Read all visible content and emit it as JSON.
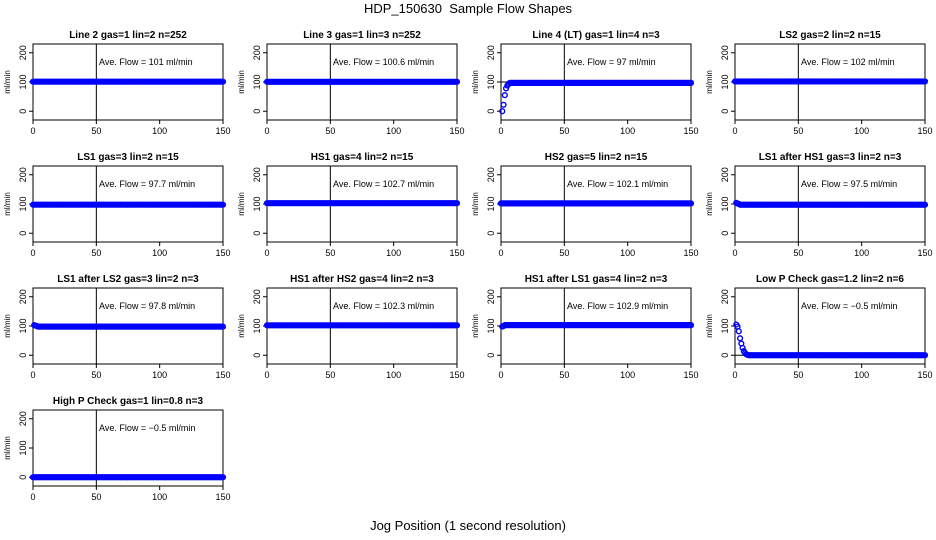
{
  "figure": {
    "title": "HDP_150630  Sample Flow Shapes",
    "xlabel": "Jog Position (1 second resolution)"
  },
  "chart_data": [
    {
      "type": "scatter",
      "title": "Line 2 gas=1 lin=2 n=252",
      "ylabel": "ml/min",
      "annotation": "Ave. Flow = 101  ml/min",
      "xlim": [
        0,
        150
      ],
      "ylim": [
        -30,
        230
      ],
      "xticks": [
        0,
        50,
        100,
        150
      ],
      "yticks": [
        0,
        100,
        200
      ],
      "vline": 50,
      "hline": 100,
      "shape": "flat",
      "level": 101,
      "color": "#0000ff"
    },
    {
      "type": "scatter",
      "title": "Line 3 gas=1 lin=3 n=252",
      "ylabel": "ml/min",
      "annotation": "Ave. Flow = 100.6  ml/min",
      "xlim": [
        0,
        150
      ],
      "ylim": [
        -30,
        230
      ],
      "xticks": [
        0,
        50,
        100,
        150
      ],
      "yticks": [
        0,
        100,
        200
      ],
      "vline": 50,
      "hline": 100,
      "shape": "flat",
      "level": 100.6,
      "color": "#0000ff"
    },
    {
      "type": "scatter",
      "title": "Line 4 (LT) gas=1 lin=4 n=3",
      "ylabel": "ml/min",
      "annotation": "Ave. Flow = 97  ml/min",
      "xlim": [
        0,
        150
      ],
      "ylim": [
        -30,
        230
      ],
      "xticks": [
        0,
        50,
        100,
        150
      ],
      "yticks": [
        0,
        100,
        200
      ],
      "vline": 50,
      "hline": 100,
      "shape": "rise",
      "level": 97,
      "start": [
        [
          1,
          0
        ],
        [
          2,
          22
        ],
        [
          3,
          55
        ],
        [
          4,
          78
        ],
        [
          5,
          88
        ],
        [
          6,
          93
        ]
      ],
      "color": "#0000ff"
    },
    {
      "type": "scatter",
      "title": "LS2 gas=2 lin=2 n=15",
      "ylabel": "ml/min",
      "annotation": "Ave. Flow = 102  ml/min",
      "xlim": [
        0,
        150
      ],
      "ylim": [
        -30,
        230
      ],
      "xticks": [
        0,
        50,
        100,
        150
      ],
      "yticks": [
        0,
        100,
        200
      ],
      "vline": 50,
      "hline": 100,
      "shape": "flat",
      "level": 102,
      "color": "#0000ff"
    },
    {
      "type": "scatter",
      "title": "LS1 gas=3 lin=2 n=15",
      "ylabel": "ml/min",
      "annotation": "Ave. Flow = 97.7  ml/min",
      "xlim": [
        0,
        150
      ],
      "ylim": [
        -30,
        230
      ],
      "xticks": [
        0,
        50,
        100,
        150
      ],
      "yticks": [
        0,
        100,
        200
      ],
      "vline": 50,
      "hline": 100,
      "shape": "flat",
      "level": 97.7,
      "color": "#0000ff"
    },
    {
      "type": "scatter",
      "title": "HS1 gas=4 lin=2 n=15",
      "ylabel": "ml/min",
      "annotation": "Ave. Flow = 102.7  ml/min",
      "xlim": [
        0,
        150
      ],
      "ylim": [
        -30,
        230
      ],
      "xticks": [
        0,
        50,
        100,
        150
      ],
      "yticks": [
        0,
        100,
        200
      ],
      "vline": 50,
      "hline": 100,
      "shape": "flat",
      "level": 102.7,
      "color": "#0000ff"
    },
    {
      "type": "scatter",
      "title": "HS2 gas=5 lin=2 n=15",
      "ylabel": "ml/min",
      "annotation": "Ave. Flow = 102.1  ml/min",
      "xlim": [
        0,
        150
      ],
      "ylim": [
        -30,
        230
      ],
      "xticks": [
        0,
        50,
        100,
        150
      ],
      "yticks": [
        0,
        100,
        200
      ],
      "vline": 50,
      "hline": 100,
      "shape": "flat",
      "level": 102.1,
      "color": "#0000ff"
    },
    {
      "type": "scatter",
      "title": "LS1 after HS1 gas=3 lin=2 n=3",
      "ylabel": "ml/min",
      "annotation": "Ave. Flow = 97.5  ml/min",
      "xlim": [
        0,
        150
      ],
      "ylim": [
        -30,
        230
      ],
      "xticks": [
        0,
        50,
        100,
        150
      ],
      "yticks": [
        0,
        100,
        200
      ],
      "vline": 50,
      "hline": 100,
      "shape": "flat",
      "level": 97.5,
      "start": [
        [
          1,
          104
        ],
        [
          2,
          102
        ],
        [
          3,
          100
        ]
      ],
      "color": "#0000ff"
    },
    {
      "type": "scatter",
      "title": "LS1 after LS2 gas=3 lin=2 n=3",
      "ylabel": "ml/min",
      "annotation": "Ave. Flow = 97.8  ml/min",
      "xlim": [
        0,
        150
      ],
      "ylim": [
        -30,
        230
      ],
      "xticks": [
        0,
        50,
        100,
        150
      ],
      "yticks": [
        0,
        100,
        200
      ],
      "vline": 50,
      "hline": 100,
      "shape": "flat",
      "level": 97.8,
      "start": [
        [
          1,
          103
        ],
        [
          2,
          101
        ],
        [
          3,
          100
        ]
      ],
      "color": "#0000ff"
    },
    {
      "type": "scatter",
      "title": "HS1 after HS2 gas=4 lin=2 n=3",
      "ylabel": "ml/min",
      "annotation": "Ave. Flow = 102.3  ml/min",
      "xlim": [
        0,
        150
      ],
      "ylim": [
        -30,
        230
      ],
      "xticks": [
        0,
        50,
        100,
        150
      ],
      "yticks": [
        0,
        100,
        200
      ],
      "vline": 50,
      "hline": 100,
      "shape": "flat",
      "level": 102.3,
      "color": "#0000ff"
    },
    {
      "type": "scatter",
      "title": "HS1 after LS1 gas=4 lin=2 n=3",
      "ylabel": "ml/min",
      "annotation": "Ave. Flow = 102.9  ml/min",
      "xlim": [
        0,
        150
      ],
      "ylim": [
        -30,
        230
      ],
      "xticks": [
        0,
        50,
        100,
        150
      ],
      "yticks": [
        0,
        100,
        200
      ],
      "vline": 50,
      "hline": 100,
      "shape": "flat",
      "level": 102.9,
      "start": [
        [
          1,
          98
        ],
        [
          2,
          100
        ]
      ],
      "color": "#0000ff"
    },
    {
      "type": "scatter",
      "title": "Low P Check gas=1.2 lin=2 n=6",
      "ylabel": "ml/min",
      "annotation": "Ave. Flow = −0.5  ml/min",
      "xlim": [
        0,
        150
      ],
      "ylim": [
        -30,
        230
      ],
      "xticks": [
        0,
        50,
        100,
        150
      ],
      "yticks": [
        0,
        100,
        200
      ],
      "vline": 50,
      "hline": 0,
      "shape": "decay",
      "level": 0,
      "start": [
        [
          1,
          105
        ],
        [
          2,
          98
        ],
        [
          3,
          82
        ],
        [
          4,
          58
        ],
        [
          5,
          40
        ],
        [
          6,
          25
        ],
        [
          7,
          14
        ],
        [
          8,
          7
        ],
        [
          9,
          3
        ],
        [
          10,
          1
        ]
      ],
      "color": "#0000ff"
    },
    {
      "type": "scatter",
      "title": "High P Check gas=1 lin=0.8 n=3",
      "ylabel": "ml/min",
      "annotation": "Ave. Flow = −0.5  ml/min",
      "xlim": [
        0,
        150
      ],
      "ylim": [
        -30,
        230
      ],
      "xticks": [
        0,
        50,
        100,
        150
      ],
      "yticks": [
        0,
        100,
        200
      ],
      "vline": 50,
      "hline": 0,
      "shape": "flat",
      "level": 0,
      "color": "#0000ff"
    }
  ]
}
